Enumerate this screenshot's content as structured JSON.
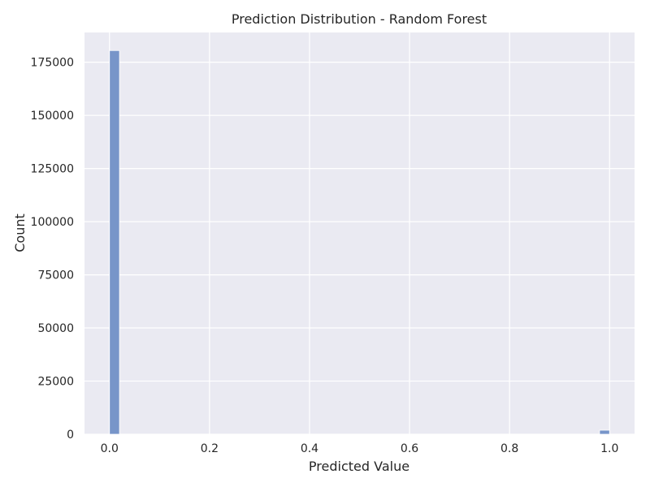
{
  "chart_data": {
    "type": "bar",
    "title": "Prediction Distribution - Random Forest",
    "xlabel": "Predicted Value",
    "ylabel": "Count",
    "xlim": [
      -0.05,
      1.05
    ],
    "ylim": [
      0,
      189000
    ],
    "x_ticks": [
      "0.0",
      "0.2",
      "0.4",
      "0.6",
      "0.8",
      "1.0"
    ],
    "y_ticks": [
      "0",
      "25000",
      "50000",
      "75000",
      "100000",
      "125000",
      "150000",
      "175000"
    ],
    "bins": [
      {
        "x0": 0.0,
        "x1": 0.02,
        "value": 180500
      },
      {
        "x0": 0.98,
        "x1": 1.0,
        "value": 1900
      }
    ],
    "grid": true,
    "colors": {
      "bar": "#7795c9",
      "plot_background": "#eaeaf2",
      "grid": "#ffffff"
    }
  }
}
